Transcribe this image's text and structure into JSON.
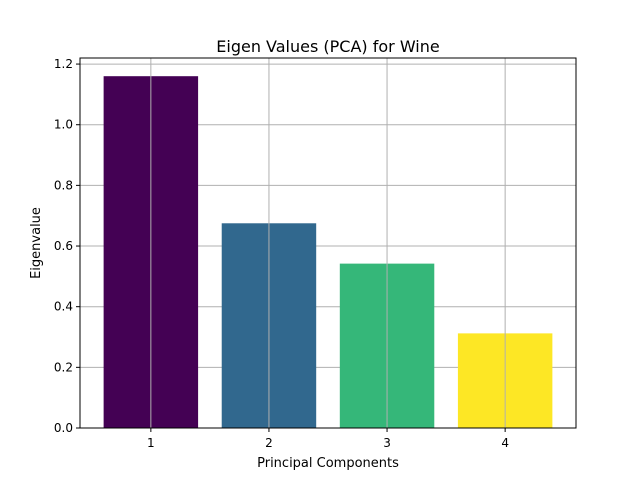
{
  "chart_data": {
    "type": "bar",
    "title": "Eigen Values (PCA) for Wine",
    "xlabel": "Principal Components",
    "ylabel": "Eigenvalue",
    "categories": [
      "1",
      "2",
      "3",
      "4"
    ],
    "values": [
      1.16,
      0.675,
      0.542,
      0.312
    ],
    "bar_colors": [
      "#440154",
      "#31688e",
      "#35b779",
      "#fde725"
    ],
    "ylim": [
      0,
      1.22
    ],
    "yticks": [
      0.0,
      0.2,
      0.4,
      0.6,
      0.8,
      1.0,
      1.2
    ],
    "ytick_labels": [
      "0.0",
      "0.2",
      "0.4",
      "0.6",
      "0.8",
      "1.0",
      "1.2"
    ],
    "grid": true,
    "legend": "none"
  }
}
